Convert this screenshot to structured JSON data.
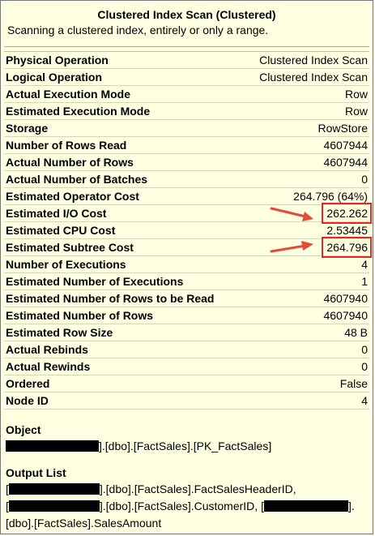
{
  "header": {
    "title": "Clustered Index Scan (Clustered)",
    "subtitle": "Scanning a clustered index, entirely or only a range."
  },
  "properties": [
    {
      "label": "Physical Operation",
      "value": "Clustered Index Scan"
    },
    {
      "label": "Logical Operation",
      "value": "Clustered Index Scan"
    },
    {
      "label": "Actual Execution Mode",
      "value": "Row"
    },
    {
      "label": "Estimated Execution Mode",
      "value": "Row"
    },
    {
      "label": "Storage",
      "value": "RowStore"
    },
    {
      "label": "Number of Rows Read",
      "value": "4607944"
    },
    {
      "label": "Actual Number of Rows",
      "value": "4607944"
    },
    {
      "label": "Actual Number of Batches",
      "value": "0"
    },
    {
      "label": "Estimated Operator Cost",
      "value": "264.796 (64%)"
    },
    {
      "label": "Estimated I/O Cost",
      "value": "262.262"
    },
    {
      "label": "Estimated CPU Cost",
      "value": "2.53445"
    },
    {
      "label": "Estimated Subtree Cost",
      "value": "264.796"
    },
    {
      "label": "Number of Executions",
      "value": "4"
    },
    {
      "label": "Estimated Number of Executions",
      "value": "1"
    },
    {
      "label": "Estimated Number of Rows to be Read",
      "value": "4607940"
    },
    {
      "label": "Estimated Number of Rows",
      "value": "4607940"
    },
    {
      "label": "Estimated Row Size",
      "value": "48 B"
    },
    {
      "label": "Actual Rebinds",
      "value": "0"
    },
    {
      "label": "Actual Rewinds",
      "value": "0"
    },
    {
      "label": "Ordered",
      "value": "False"
    },
    {
      "label": "Node ID",
      "value": "4"
    }
  ],
  "object": {
    "title": "Object",
    "line1": "].[dbo].[FactSales].[PK_FactSales]"
  },
  "output_list": {
    "title": "Output List",
    "line1_prefix": "[",
    "line1": "].[dbo].[FactSales].FactSalesHeaderID,",
    "line2_prefix": "[",
    "line2": "].[dbo].[FactSales].CustomerID, [",
    "line2_suffix": "].",
    "line3": "[dbo].[FactSales].SalesAmount"
  },
  "annotations": {
    "highlight_color": "#e02828",
    "arrow_color": "#e24a3b"
  }
}
